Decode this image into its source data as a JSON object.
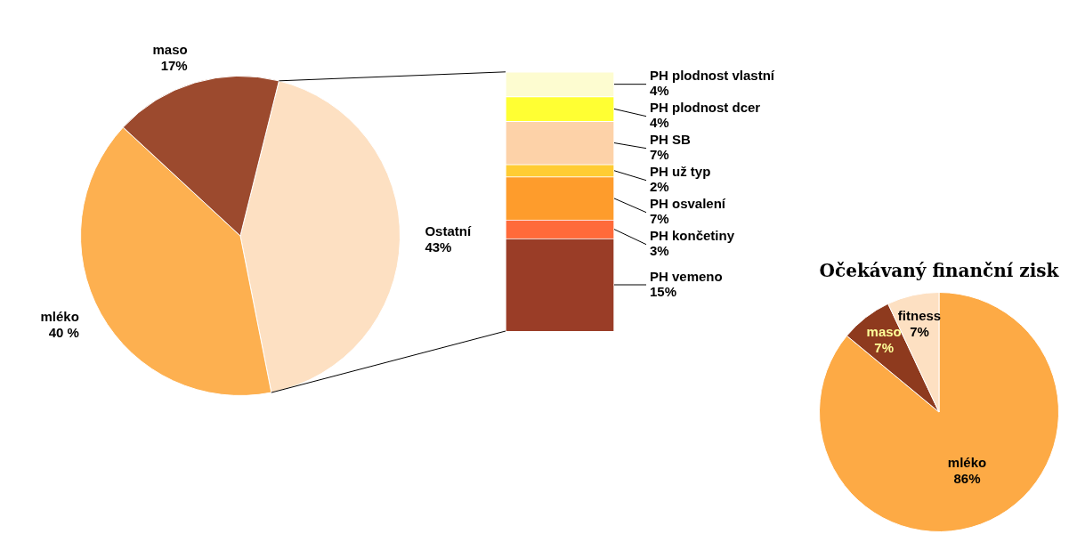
{
  "chart_data": [
    {
      "type": "pie",
      "categories": [
        "Ostatní",
        "mléko",
        "maso"
      ],
      "values": [
        43,
        40,
        17
      ],
      "value_labels": [
        "43%",
        "40 %",
        "17%"
      ],
      "colors": [
        "#fde0c2",
        "#fdb050",
        "#9c4a2e"
      ],
      "legend": false
    },
    {
      "type": "bar",
      "stacked": true,
      "categories": [
        null
      ],
      "legend": false,
      "series": [
        {
          "name": "PH vemeno",
          "color": "#9a3d27",
          "values": [
            15
          ],
          "value_labels": [
            "15%"
          ]
        },
        {
          "name": "PH končetiny",
          "color": "#ff6a3a",
          "values": [
            3
          ],
          "value_labels": [
            "3%"
          ]
        },
        {
          "name": "PH osvalení",
          "color": "#fe9c2c",
          "values": [
            7
          ],
          "value_labels": [
            "7%"
          ]
        },
        {
          "name": "PH už typ",
          "color": "#ffcc33",
          "values": [
            2
          ],
          "value_labels": [
            "2%"
          ]
        },
        {
          "name": "PH SB",
          "color": "#fdd2a8",
          "values": [
            7
          ],
          "value_labels": [
            "7%"
          ]
        },
        {
          "name": "PH plodnost dcer",
          "color": "#ffff33",
          "values": [
            4
          ],
          "value_labels": [
            "4%"
          ]
        },
        {
          "name": "PH plodnost vlastní",
          "color": "#fdfcd0",
          "values": [
            4
          ],
          "value_labels": [
            "4%"
          ]
        }
      ]
    },
    {
      "type": "pie",
      "title": "Očekávaný finanční zisk",
      "categories": [
        "mléko",
        "maso",
        "fitness"
      ],
      "values": [
        86,
        7,
        7
      ],
      "value_labels": [
        "86%",
        "7%",
        "7%"
      ],
      "colors": [
        "#fdaa45",
        "#8e3a1e",
        "#fde0c2"
      ],
      "legend": false
    }
  ]
}
